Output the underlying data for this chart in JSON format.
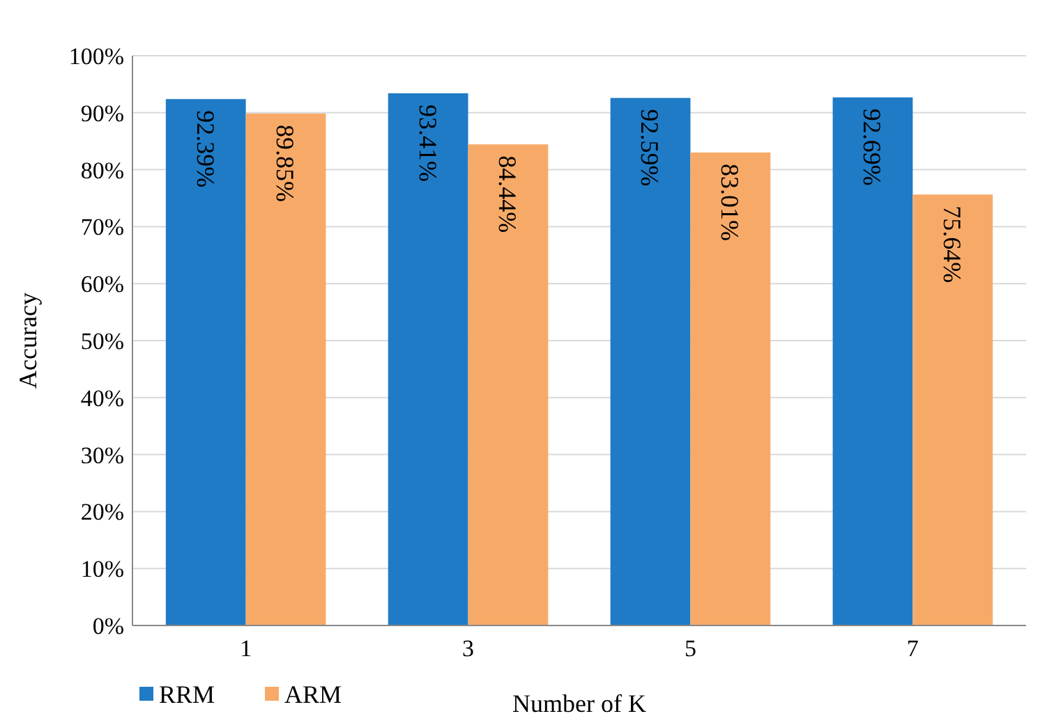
{
  "chart_data": {
    "type": "bar",
    "xlabel": "Number of K",
    "ylabel": "Accuracy",
    "categories": [
      "1",
      "3",
      "5",
      "7"
    ],
    "series": [
      {
        "name": "RRM",
        "color": "#1f7bc6",
        "values": [
          92.39,
          93.41,
          92.59,
          92.69
        ],
        "value_labels": [
          "92.39%",
          "93.41%",
          "92.59%",
          "92.69%"
        ]
      },
      {
        "name": "ARM",
        "color": "#f7aa68",
        "values": [
          89.85,
          84.44,
          83.01,
          75.64
        ],
        "value_labels": [
          "89.85%",
          "84.44%",
          "83.01%",
          "75.64%"
        ]
      }
    ],
    "ylim": [
      0,
      100
    ],
    "yticks": [
      {
        "value": 0,
        "label": "0%"
      },
      {
        "value": 10,
        "label": "10%"
      },
      {
        "value": 20,
        "label": "20%"
      },
      {
        "value": 30,
        "label": "30%"
      },
      {
        "value": 40,
        "label": "40%"
      },
      {
        "value": 50,
        "label": "50%"
      },
      {
        "value": 60,
        "label": "60%"
      },
      {
        "value": 70,
        "label": "70%"
      },
      {
        "value": 80,
        "label": "80%"
      },
      {
        "value": 90,
        "label": "90%"
      },
      {
        "value": 100,
        "label": "100%"
      }
    ],
    "grid": "y",
    "legend": "bottom left"
  }
}
